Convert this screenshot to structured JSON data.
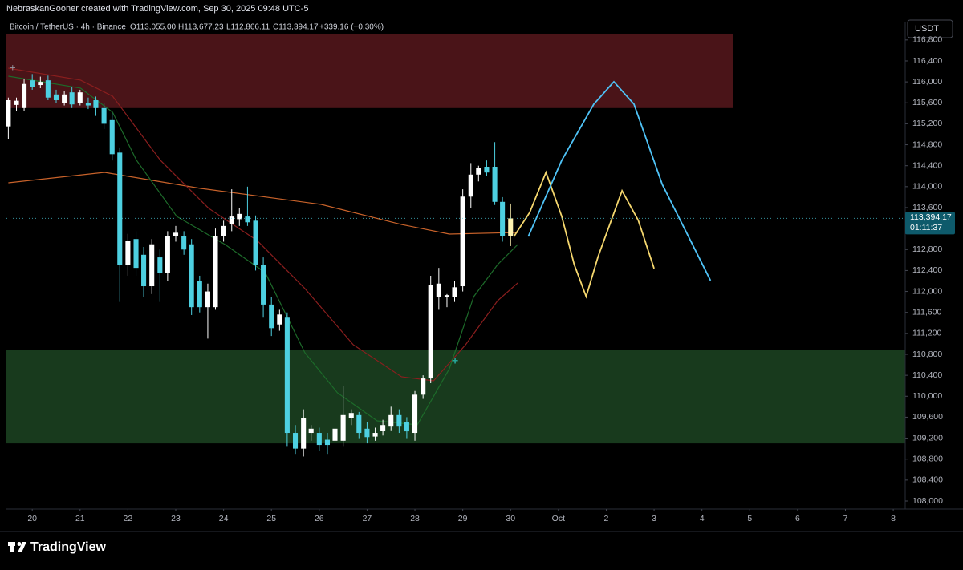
{
  "header": {
    "credit": "NebraskanGooner created with TradingView.com, Sep 30, 2025 09:48 UTC-5",
    "symbol": "Bitcoin / TetherUS · 4h · Binance",
    "open": "O113,055.00",
    "high": "H113,677.23",
    "low": "L112,866.11",
    "close": "C113,394.17",
    "change": "+339.16 (+0.30%)",
    "currency": "USDT"
  },
  "footer": {
    "brand": "TradingView"
  },
  "chart_data": {
    "type": "candlestick",
    "up_color": "#ffffff",
    "down_color": "#4dd0e1",
    "last_color": "#fff3b0",
    "grid": false,
    "x": [
      19.5,
      19.67,
      19.83,
      20,
      20.17,
      20.33,
      20.5,
      20.67,
      20.83,
      21,
      21.17,
      21.33,
      21.5,
      21.67,
      21.83,
      22,
      22.17,
      22.33,
      22.5,
      22.67,
      22.83,
      23,
      23.17,
      23.33,
      23.5,
      23.67,
      23.83,
      24,
      24.17,
      24.33,
      24.5,
      24.67,
      24.83,
      25,
      25.17,
      25.33,
      25.5,
      25.67,
      25.83,
      26,
      26.17,
      26.33,
      26.5,
      26.67,
      26.83,
      27,
      27.17,
      27.33,
      27.5,
      27.67,
      27.83,
      28,
      28.17,
      28.33,
      28.5,
      28.67,
      28.83,
      29,
      29.17,
      29.33,
      29.5,
      29.67,
      29.83,
      30
    ],
    "open": [
      115150,
      115560,
      115500,
      116030,
      115940,
      116030,
      115760,
      115600,
      115800,
      115600,
      115600,
      115650,
      115500,
      115270,
      114650,
      112500,
      113000,
      112700,
      112100,
      112650,
      112350,
      113050,
      113050,
      112900,
      112200,
      111700,
      111700,
      113050,
      113280,
      113380,
      113430,
      113350,
      112500,
      111750,
      111370,
      111500,
      109300,
      109000,
      109300,
      109300,
      109170,
      109150,
      109150,
      109580,
      109640,
      109380,
      109230,
      109340,
      109420,
      109640,
      109500,
      109300,
      110030,
      110340,
      111900,
      111900,
      111900,
      112100,
      113810,
      114230,
      114380,
      114380,
      113710,
      113055
    ],
    "high": [
      115700,
      115700,
      116050,
      116150,
      116100,
      116120,
      115850,
      115820,
      115900,
      115850,
      115700,
      115720,
      115600,
      115400,
      114750,
      113100,
      113150,
      112850,
      113000,
      112800,
      113150,
      113250,
      113150,
      113000,
      112300,
      112150,
      113200,
      113350,
      113950,
      113600,
      114000,
      113450,
      112650,
      111900,
      111650,
      111600,
      109450,
      109750,
      109450,
      109400,
      109300,
      109500,
      110200,
      109750,
      109700,
      109500,
      109400,
      109550,
      109800,
      109750,
      109600,
      110100,
      110400,
      112300,
      112450,
      111950,
      112200,
      113950,
      114450,
      114400,
      114500,
      114850,
      113800,
      113677.23
    ],
    "low": [
      114900,
      115450,
      115450,
      115850,
      115880,
      115650,
      115600,
      115550,
      115500,
      115550,
      115480,
      115350,
      115100,
      114500,
      111800,
      112300,
      112300,
      111900,
      111950,
      111800,
      112200,
      112950,
      112700,
      111550,
      111600,
      111100,
      111650,
      112950,
      113150,
      113250,
      113250,
      112400,
      111500,
      111150,
      111250,
      109050,
      108900,
      108850,
      109150,
      108950,
      108900,
      109050,
      109050,
      109450,
      109200,
      109100,
      109150,
      109250,
      109350,
      109300,
      109200,
      109150,
      109950,
      110250,
      111650,
      111700,
      111800,
      112000,
      113600,
      114100,
      114200,
      113650,
      112950,
      112866.11
    ],
    "close": [
      115650,
      115640,
      115960,
      115910,
      116000,
      115700,
      115650,
      115760,
      115570,
      115800,
      115550,
      115500,
      115200,
      114620,
      112500,
      112970,
      112450,
      112100,
      112900,
      112350,
      113050,
      113120,
      112800,
      111700,
      111700,
      112000,
      113050,
      113250,
      113430,
      113480,
      113320,
      112500,
      111750,
      111300,
      111560,
      109300,
      109000,
      109580,
      109380,
      109070,
      109070,
      109380,
      109640,
      109680,
      109300,
      109220,
      109300,
      109450,
      109640,
      109420,
      109330,
      110030,
      110340,
      112130,
      112150,
      111930,
      112080,
      113810,
      114230,
      114350,
      114270,
      113710,
      113050,
      113394.17
    ],
    "lines": [
      {
        "color": "#c8622a",
        "x": [
          19.5,
          21.51,
          23.52,
          26.04,
          27.72,
          28.72,
          30.15
        ],
        "values": [
          114074,
          114273,
          113967,
          113661,
          113278,
          113095,
          113126
        ]
      },
      {
        "color": "#8b1e1e",
        "x": [
          19.5,
          21.01,
          21.68,
          22.68,
          23.69,
          24.7,
          25.7,
          26.71,
          27.72,
          28.39,
          29.06,
          29.73,
          30.15
        ],
        "values": [
          116262,
          116033,
          115727,
          114503,
          113585,
          112973,
          112055,
          110984,
          110372,
          110295,
          110984,
          111825,
          112162
        ]
      },
      {
        "color": "#1d6b2a",
        "x": [
          19.5,
          21.01,
          21.68,
          22.18,
          23.02,
          24.03,
          24.87,
          25.7,
          26.38,
          27.21,
          28.05,
          28.72,
          29.23,
          29.73,
          30.15
        ],
        "values": [
          116109,
          115880,
          115421,
          114503,
          113432,
          112896,
          112361,
          110831,
          110066,
          109530,
          109454,
          110525,
          111902,
          112514,
          112896
        ]
      },
      {
        "color": "#f5d76e",
        "x": [
          30.07,
          30.4,
          30.74,
          31.07,
          31.33,
          31.58,
          31.83,
          32.33,
          32.67,
          33.0
        ],
        "values": [
          113049,
          113508,
          114273,
          113432,
          112514,
          111902,
          112667,
          113922,
          113355,
          112438
        ]
      },
      {
        "color": "#4fc3f7",
        "x": [
          30.37,
          31.07,
          31.74,
          32.16,
          32.58,
          33.17,
          33.76,
          34.18
        ],
        "values": [
          113049,
          114503,
          115574,
          116003,
          115574,
          114044,
          112973,
          112208
        ]
      }
    ],
    "zones": [
      {
        "color": "#4a1418",
        "x": [
          19.46,
          34.65
        ],
        "y": [
          115500,
          116920
        ]
      },
      {
        "color": "#183a1d",
        "x": [
          19.46,
          38.25
        ],
        "y": [
          109100,
          110880
        ]
      }
    ],
    "last_price": {
      "value": 113394.17,
      "label": "113,394.17"
    },
    "countdown": "01:11:37",
    "xlim": [
      19.46,
      38.25
    ],
    "ylim": [
      107847,
      117134
    ],
    "xticks": [
      20,
      21,
      22,
      23,
      24,
      25,
      26,
      27,
      28,
      29,
      30,
      {
        "value": 31,
        "label": "Oct"
      },
      {
        "value": 32,
        "label": "2"
      },
      {
        "value": 33,
        "label": "3"
      },
      {
        "value": 34,
        "label": "4"
      },
      {
        "value": 35,
        "label": "5"
      },
      {
        "value": 36,
        "label": "6"
      },
      {
        "value": 37,
        "label": "7"
      },
      {
        "value": 38,
        "label": "8"
      }
    ],
    "yticks": [
      {
        "value": 108000,
        "label": "108,000"
      },
      {
        "value": 108400,
        "label": "108,400"
      },
      {
        "value": 108800,
        "label": "108,800"
      },
      {
        "value": 109200,
        "label": "109,200"
      },
      {
        "value": 109600,
        "label": "109,600"
      },
      {
        "value": 110000,
        "label": "110,000"
      },
      {
        "value": 110400,
        "label": "110,400"
      },
      {
        "value": 110800,
        "label": "110,800"
      },
      {
        "value": 111200,
        "label": "111,200"
      },
      {
        "value": 111600,
        "label": "111,600"
      },
      {
        "value": 112000,
        "label": "112,000"
      },
      {
        "value": 112400,
        "label": "112,400"
      },
      {
        "value": 112800,
        "label": "112,800"
      },
      {
        "value": 113200,
        "label": "113,200"
      },
      {
        "value": 113600,
        "label": "113,600"
      },
      {
        "value": 114000,
        "label": "114,000"
      },
      {
        "value": 114400,
        "label": "114,400"
      },
      {
        "value": 114800,
        "label": "114,800"
      },
      {
        "value": 115200,
        "label": "115,200"
      },
      {
        "value": 115600,
        "label": "115,600"
      },
      {
        "value": 116000,
        "label": "116,000"
      },
      {
        "value": 116400,
        "label": "116,400"
      },
      {
        "value": 116800,
        "label": "116,800"
      }
    ]
  }
}
